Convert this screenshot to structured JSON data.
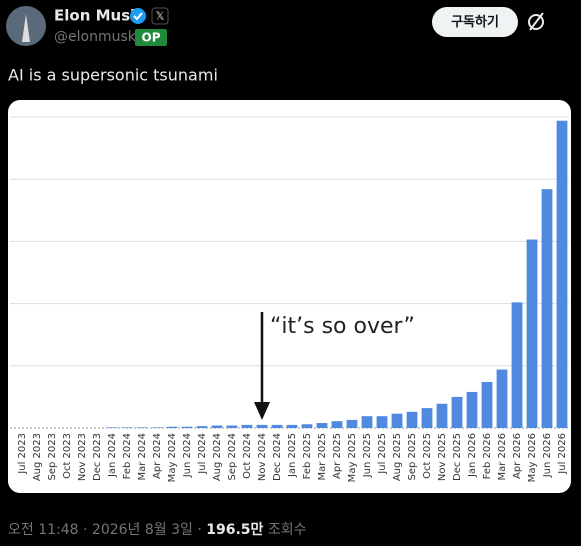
{
  "post": {
    "name": "Elon Musk",
    "x_badge": "𝕏",
    "handle": "@elonmusk",
    "op_badge": "OP",
    "follow_button": "구독하기",
    "text": "AI is a supersonic tsunami",
    "footer": {
      "time": "오전 11:48",
      "separator": "·",
      "date": "2026년 8월 3일",
      "views": "196.5만",
      "views_label": "조회수"
    }
  },
  "chart_data": {
    "type": "bar",
    "color": "#4f8ae0",
    "grid": true,
    "categories": [
      "Jul 2023",
      "Aug 2023",
      "Sep 2023",
      "Oct 2023",
      "Nov 2023",
      "Dec 2023",
      "Jan 2024",
      "Feb 2024",
      "Mar 2024",
      "Apr 2024",
      "May 2024",
      "Jun 2024",
      "Jul 2024",
      "Aug 2024",
      "Sep 2024",
      "Oct 2024",
      "Nov 2024",
      "Dec 2024",
      "Jan 2025",
      "Feb 2025",
      "Mar 2025",
      "Apr 2025",
      "May 2025",
      "Jun 2025",
      "Jul 2025",
      "Aug 2025",
      "Sep 2025",
      "Oct 2025",
      "Nov 2025",
      "Dec 2025",
      "Jan 2026",
      "Feb 2026",
      "Mar 2026",
      "Apr 2026",
      "May 2026",
      "Jun 2026",
      "Jul 2026"
    ],
    "values": [
      0,
      0,
      0,
      0,
      0,
      0,
      0.01,
      0.01,
      0.01,
      0.01,
      0.02,
      0.02,
      0.03,
      0.04,
      0.04,
      0.05,
      0.05,
      0.05,
      0.05,
      0.06,
      0.08,
      0.11,
      0.13,
      0.19,
      0.19,
      0.23,
      0.26,
      0.32,
      0.39,
      0.5,
      0.58,
      0.74,
      0.94,
      2.02,
      3.03,
      3.84,
      4.94
    ],
    "ylim": [
      0,
      5
    ],
    "yticks": [
      0,
      1,
      2,
      3,
      4,
      5
    ],
    "annotation": {
      "text": "“it’s so over”",
      "category": "Nov 2024"
    }
  }
}
